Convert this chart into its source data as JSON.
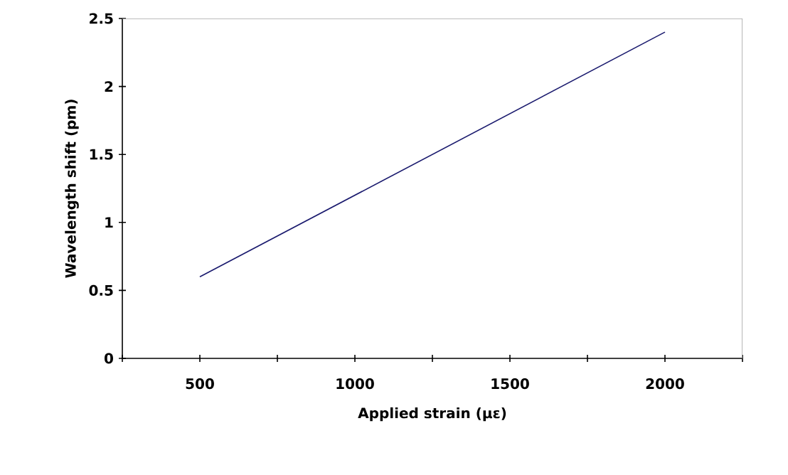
{
  "chart_data": {
    "type": "line",
    "xlabel": "Applied strain (με)",
    "ylabel": "Wavelength shift (pm)",
    "x": [
      500,
      2000
    ],
    "series": [
      {
        "color": "#1a1a6e",
        "values": [
          0.6,
          2.4
        ]
      }
    ],
    "xlim": [
      250,
      2250
    ],
    "xticks": [
      {
        "value": 250,
        "label": null
      },
      500,
      {
        "value": 750,
        "label": null
      },
      1000,
      {
        "value": 1250,
        "label": null
      },
      1500,
      {
        "value": 1750,
        "label": null
      },
      2000,
      {
        "value": 2250,
        "label": null
      }
    ],
    "ylim": [
      0,
      2.5
    ],
    "yticks": [
      0,
      0.5,
      1,
      1.5,
      2,
      2.5
    ],
    "marker": "none",
    "line_style": "solid",
    "grid": false
  }
}
